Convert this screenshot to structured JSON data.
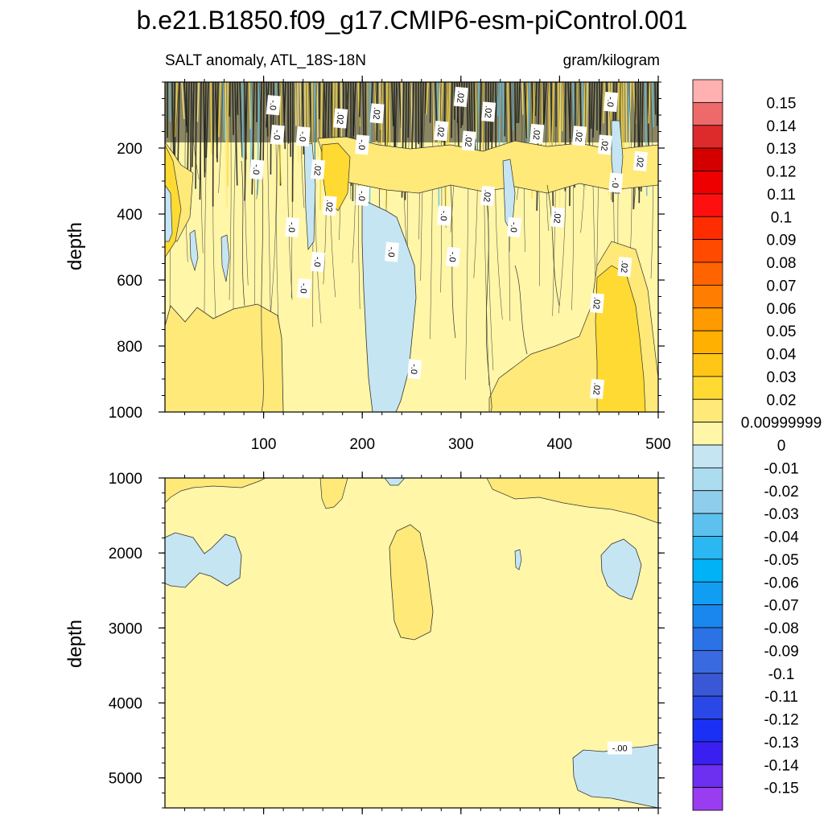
{
  "chart_data": {
    "type": "filled-contour",
    "title": "b.e21.B1850.f09_g17.CMIP6-esm-piControl.001",
    "subtitle_left": "SALT anomaly, ATL_18S-18N",
    "subtitle_right": "gram/kilogram",
    "panels": [
      {
        "name": "upper",
        "ylabel": "depth",
        "ylim": [
          0,
          1000
        ],
        "yticks": [
          200,
          400,
          600,
          800,
          1000
        ],
        "xlim": [
          0,
          500
        ],
        "xticks": [
          100,
          200,
          300,
          400,
          500
        ],
        "contour_labels": [
          {
            "text": "-.0",
            "x": 110,
            "depth": 70
          },
          {
            "text": ".02",
            "x": 178,
            "depth": 110
          },
          {
            "text": ".02",
            "x": 215,
            "depth": 95
          },
          {
            "text": ".02",
            "x": 300,
            "depth": 45
          },
          {
            "text": ".02",
            "x": 328,
            "depth": 90
          },
          {
            "text": "-.0",
            "x": 452,
            "depth": 60
          },
          {
            "text": "-.0",
            "x": 114,
            "depth": 160
          },
          {
            "text": "-.0",
            "x": 140,
            "depth": 165
          },
          {
            "text": "-.0",
            "x": 200,
            "depth": 190
          },
          {
            "text": ".02",
            "x": 280,
            "depth": 148
          },
          {
            "text": ".02",
            "x": 308,
            "depth": 178
          },
          {
            "text": ".02",
            "x": 377,
            "depth": 157
          },
          {
            "text": ".02",
            "x": 420,
            "depth": 163
          },
          {
            "text": ".02",
            "x": 446,
            "depth": 190
          },
          {
            "text": ".02",
            "x": 482,
            "depth": 240
          },
          {
            "text": "-.0",
            "x": 93,
            "depth": 265
          },
          {
            "text": ".02",
            "x": 155,
            "depth": 265
          },
          {
            "text": "-.0",
            "x": 457,
            "depth": 305
          },
          {
            "text": "-.0",
            "x": 200,
            "depth": 345
          },
          {
            "text": ".02",
            "x": 327,
            "depth": 345
          },
          {
            "text": ".02",
            "x": 167,
            "depth": 375
          },
          {
            "text": "-.0",
            "x": 283,
            "depth": 405
          },
          {
            "text": ".02",
            "x": 398,
            "depth": 410
          },
          {
            "text": "-.0",
            "x": 129,
            "depth": 440
          },
          {
            "text": "-.0",
            "x": 354,
            "depth": 440
          },
          {
            "text": "-.0",
            "x": 230,
            "depth": 515
          },
          {
            "text": "-.0",
            "x": 292,
            "depth": 530
          },
          {
            "text": "-.0",
            "x": 155,
            "depth": 545
          },
          {
            "text": ".02",
            "x": 466,
            "depth": 560
          },
          {
            "text": "-.0",
            "x": 141,
            "depth": 625
          },
          {
            "text": ".02",
            "x": 438,
            "depth": 670
          },
          {
            "text": "-.0",
            "x": 253,
            "depth": 870
          },
          {
            "text": ".02",
            "x": 438,
            "depth": 930
          }
        ]
      },
      {
        "name": "lower",
        "ylabel": "depth",
        "ylim": [
          1000,
          5400
        ],
        "yticks": [
          1000,
          2000,
          3000,
          4000,
          5000
        ],
        "xlim": [
          0,
          500
        ],
        "contour_labels": [
          {
            "text": "-.00",
            "x": 461,
            "depth": 4600
          }
        ]
      }
    ],
    "colorbar": {
      "labels": [
        "0.15",
        "0.14",
        "0.13",
        "0.12",
        "0.11",
        "0.1",
        "0.09",
        "0.08",
        "0.07",
        "0.06",
        "0.05",
        "0.04",
        "0.03",
        "0.02",
        "0.00999999",
        "0",
        "-0.01",
        "-0.02",
        "-0.03",
        "-0.04",
        "-0.05",
        "-0.06",
        "-0.07",
        "-0.08",
        "-0.09",
        "-0.1",
        "-0.11",
        "-0.12",
        "-0.13",
        "-0.14",
        "-0.15"
      ],
      "colors": [
        "#ffb0b0",
        "#ee6a6a",
        "#dd2a2a",
        "#d40000",
        "#ee0000",
        "#ff1010",
        "#ff2c00",
        "#ff4a00",
        "#ff6400",
        "#ff7d00",
        "#ff9a00",
        "#ffb000",
        "#ffc618",
        "#ffda32",
        "#ffe979",
        "#fff6a8",
        "#c5e5f2",
        "#acdcf0",
        "#8fcdec",
        "#5cc1ee",
        "#2ab7f2",
        "#00b3f7",
        "#119df2",
        "#1a87ee",
        "#2a72e5",
        "#3a6ae0",
        "#3a58d6",
        "#2a48e8",
        "#1a30f5",
        "#3a20f0",
        "#6d2ff0",
        "#9a3df0"
      ]
    },
    "colors": {
      "fill_zero_to_pos": "#fff6a8",
      "fill_pos_low": "#ffe979",
      "fill_pos_mid": "#ffda32",
      "fill_neg_low": "#c5e5f2"
    }
  }
}
